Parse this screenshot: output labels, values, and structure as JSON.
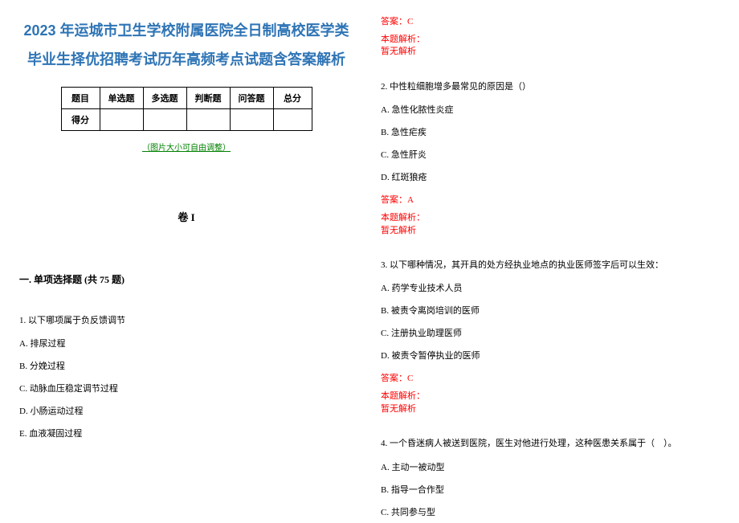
{
  "title": "2023 年运城市卫生学校附属医院全日制高校医学类毕业生择优招聘考试历年高频考点试题含答案解析",
  "score_table": {
    "headers": [
      "题目",
      "单选题",
      "多选题",
      "判断题",
      "问答题",
      "总分"
    ],
    "score_label": "得分"
  },
  "adjust_note": "（图片大小可自由调整）",
  "juan_label": "卷 I",
  "section1_header": "一. 单项选择题 (共 75 题)",
  "questions": [
    {
      "stem": "1. 以下哪项属于负反馈调节",
      "opts": [
        "A. 排尿过程",
        "B. 分娩过程",
        "C. 动脉血压稳定调节过程",
        "D. 小肠运动过程",
        "E. 血液凝固过程"
      ],
      "answer": "答案：C",
      "hint_lbl": "本题解析：",
      "hint_val": "暂无解析"
    },
    {
      "stem": "2. 中性粒细胞增多最常见的原因是（）",
      "opts": [
        "A. 急性化脓性炎症",
        "B. 急性疟疾",
        "C. 急性肝炎",
        "D. 红斑狼疮"
      ],
      "answer": "答案：A",
      "hint_lbl": "本题解析：",
      "hint_val": "暂无解析"
    },
    {
      "stem": "3. 以下哪种情况，其开具的处方经执业地点的执业医师签字后可以生效：",
      "opts": [
        "A. 药学专业技术人员",
        "B. 被责令离岗培训的医师",
        "C. 注册执业助理医师",
        "D. 被责令暂停执业的医师"
      ],
      "answer": "答案：C",
      "hint_lbl": "本题解析：",
      "hint_val": "暂无解析"
    },
    {
      "stem": "4. 一个昏迷病人被送到医院，医生对他进行处理，这种医患关系属于（　）。",
      "opts": [
        "A. 主动一被动型",
        "B. 指导一合作型",
        "C. 共同参与型"
      ]
    }
  ],
  "colors": {
    "title": "#2e74b5",
    "note": "#008000",
    "answer": "#ff0000"
  }
}
